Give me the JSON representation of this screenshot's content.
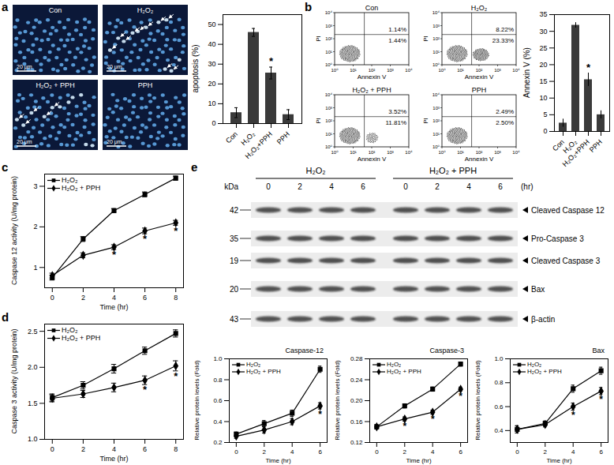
{
  "panel_labels": [
    "a",
    "b",
    "c",
    "d",
    "e"
  ],
  "micrographs": {
    "panel": "a",
    "titles": [
      "Con",
      "H₂O₂",
      "H₂O₂ + PPH",
      "PPH"
    ],
    "scale_bar": "20 μm"
  },
  "flow_cytometry": {
    "panel": "b",
    "x_label": "Annexin V",
    "y_label": "PI",
    "ticks": [
      "10⁰",
      "10¹",
      "10²",
      "10³",
      "10⁴"
    ],
    "plots": [
      {
        "title": "Con",
        "upper_right": "1.14%",
        "lower_right": "1.44%"
      },
      {
        "title": "H₂O₂",
        "upper_right": "8.22%",
        "lower_right": "23.33%"
      },
      {
        "title": "H₂O₂ + PPH",
        "upper_right": "3.52%",
        "lower_right": "11.81%"
      },
      {
        "title": "PPH",
        "upper_right": "2.49%",
        "lower_right": "2.50%"
      }
    ]
  },
  "western_blot": {
    "panel": "e",
    "groups": [
      "H₂O₂",
      "H₂O₂ + PPH"
    ],
    "times": [
      0,
      2,
      4,
      6
    ],
    "time_unit": "(hr)",
    "mw_unit": "kDa",
    "rows": [
      {
        "mw": 42,
        "label": "Cleaved Caspase 12"
      },
      {
        "mw": 35,
        "label": "Pro-Caspase 3"
      },
      {
        "mw": 19,
        "label": "Cleaved Caspase 3"
      },
      {
        "mw": 20,
        "label": "Bax"
      },
      {
        "mw": 43,
        "label": "β-actin"
      }
    ]
  },
  "chart_data": [
    {
      "panel": "a",
      "type": "bar",
      "categories": [
        "Con",
        "H₂O₂",
        "H₂O₂+PPH",
        "PPH"
      ],
      "values": [
        5.5,
        46,
        25.5,
        4.5
      ],
      "errors": [
        2.5,
        2,
        3,
        2.5
      ],
      "annotations": [
        null,
        null,
        "*",
        null
      ],
      "y_label": "apoptosis (%)",
      "ylim": [
        0,
        55
      ],
      "yticks": [
        0,
        10,
        20,
        30,
        40,
        50
      ],
      "color": "#3a3a3a"
    },
    {
      "panel": "b",
      "type": "bar",
      "categories": [
        "Con",
        "H₂O₂",
        "H₂O₂+PPH",
        "PPH"
      ],
      "values": [
        2.5,
        31.8,
        15.5,
        5
      ],
      "errors": [
        1.2,
        0.8,
        2,
        1.2
      ],
      "annotations": [
        null,
        null,
        "*",
        null
      ],
      "y_label": "Annexin V (%)",
      "ylim": [
        0,
        35
      ],
      "yticks": [
        0,
        5,
        10,
        15,
        20,
        25,
        30,
        35
      ],
      "color": "#3a3a3a"
    },
    {
      "panel": "c",
      "type": "line",
      "x": [
        0,
        2,
        4,
        6,
        8
      ],
      "x_label": "Time (hr)",
      "y_label": "Caspase 12 activity (U/mg protein)",
      "xlim": [
        -0.5,
        8.5
      ],
      "xticks": [
        0,
        2,
        4,
        6,
        8
      ],
      "ylim": [
        0.5,
        3.3
      ],
      "yticks": [
        1,
        2,
        3
      ],
      "legend": "top-left",
      "series": [
        {
          "name": "H₂O₂",
          "color": "#000000",
          "marker": "square",
          "values": [
            0.75,
            1.7,
            2.4,
            2.8,
            3.2
          ],
          "errors": [
            0.06,
            0.06,
            0.05,
            0.06,
            0.05
          ],
          "annotations": [
            null,
            null,
            null,
            null,
            null
          ]
        },
        {
          "name": "H₂O₂ + PPH",
          "color": "#000000",
          "marker": "diamond",
          "values": [
            0.8,
            1.3,
            1.5,
            1.9,
            2.1
          ],
          "errors": [
            0.06,
            0.06,
            0.06,
            0.07,
            0.06
          ],
          "annotations": [
            null,
            null,
            "*",
            "*",
            "*"
          ]
        }
      ]
    },
    {
      "panel": "d",
      "type": "line",
      "x": [
        0,
        2,
        4,
        6,
        8
      ],
      "x_label": "Time (hr)",
      "y_label": "Caspase 3 activity (U/mg protein)",
      "xlim": [
        -0.5,
        8.5
      ],
      "xticks": [
        0,
        2,
        4,
        6,
        8
      ],
      "ylim": [
        1.0,
        2.6
      ],
      "yticks": [
        {
          "value": 1,
          "label": "1.0"
        },
        1.5,
        {
          "value": 2,
          "label": "2.0"
        },
        2.5
      ],
      "legend": "top-left",
      "series": [
        {
          "name": "H₂O₂",
          "color": "#000000",
          "marker": "square",
          "values": [
            1.58,
            1.75,
            1.98,
            2.23,
            2.47
          ],
          "errors": [
            0.05,
            0.05,
            0.06,
            0.05,
            0.05
          ],
          "annotations": [
            null,
            null,
            null,
            null,
            null
          ]
        },
        {
          "name": "H₂O₂ + PPH",
          "color": "#000000",
          "marker": "diamond",
          "values": [
            1.57,
            1.63,
            1.72,
            1.82,
            2.02
          ],
          "errors": [
            0.05,
            0.05,
            0.06,
            0.06,
            0.07
          ],
          "annotations": [
            null,
            null,
            null,
            "*",
            "*"
          ]
        }
      ]
    },
    {
      "panel": "e",
      "type": "line",
      "title": "Caspase-12",
      "x": [
        0,
        2,
        4,
        6
      ],
      "x_label": "Time (hr)",
      "y_label": "Relative protein levels (Fold)",
      "xlim": [
        -0.5,
        6.5
      ],
      "xticks": [
        0,
        2,
        4,
        6
      ],
      "ylim": [
        0.2,
        1.0
      ],
      "yticks": [
        0.2,
        0.4,
        0.6,
        0.8,
        {
          "value": 1,
          "label": "1.0"
        }
      ],
      "legend": "top-left",
      "series": [
        {
          "name": "H₂O₂",
          "color": "#000000",
          "marker": "square",
          "values": [
            0.28,
            0.38,
            0.48,
            0.9
          ],
          "errors": [
            0.02,
            0.03,
            0.03,
            0.03
          ],
          "annotations": [
            null,
            null,
            null,
            null
          ]
        },
        {
          "name": "H₂O₂ + PPH",
          "color": "#000000",
          "marker": "diamond",
          "values": [
            0.26,
            0.32,
            0.4,
            0.55
          ],
          "errors": [
            0.02,
            0.03,
            0.03,
            0.03
          ],
          "annotations": [
            null,
            null,
            null,
            "*"
          ]
        }
      ]
    },
    {
      "panel": "e",
      "type": "line",
      "title": "Caspase-3",
      "x": [
        0,
        2,
        4,
        6
      ],
      "x_label": "Time (hr)",
      "y_label": "Relative protein levels (Fold)",
      "xlim": [
        -0.5,
        6.5
      ],
      "xticks": [
        0,
        2,
        4,
        6
      ],
      "ylim": [
        0.12,
        0.28
      ],
      "yticks": [
        0.12,
        0.16,
        {
          "value": 0.2,
          "label": "0.20"
        },
        0.24,
        0.28
      ],
      "legend": "top-left",
      "series": [
        {
          "name": "H₂O₂",
          "color": "#000000",
          "marker": "square",
          "values": [
            0.15,
            0.19,
            0.222,
            0.27
          ],
          "errors": [
            0.004,
            0.004,
            0.004,
            0.004
          ],
          "annotations": [
            null,
            null,
            null,
            null
          ]
        },
        {
          "name": "H₂O₂ + PPH",
          "color": "#000000",
          "marker": "diamond",
          "values": [
            0.15,
            0.165,
            0.178,
            0.222
          ],
          "errors": [
            0.004,
            0.004,
            0.004,
            0.004
          ],
          "annotations": [
            null,
            "*",
            "*",
            "*"
          ]
        }
      ]
    },
    {
      "panel": "e",
      "type": "line",
      "title": "Bax",
      "x": [
        0,
        2,
        4,
        6
      ],
      "x_label": "Time (hr)",
      "y_label": "Relative protein levels (Fold)",
      "xlim": [
        -0.5,
        6.5
      ],
      "xticks": [
        0,
        2,
        4,
        6
      ],
      "ylim": [
        0.3,
        1.0
      ],
      "yticks": [
        0.4,
        0.6,
        0.8,
        {
          "value": 1,
          "label": "1.0"
        }
      ],
      "legend": "top-left",
      "series": [
        {
          "name": "H₂O₂",
          "color": "#000000",
          "marker": "square",
          "values": [
            0.41,
            0.46,
            0.75,
            0.9
          ],
          "errors": [
            0.03,
            0.02,
            0.03,
            0.03
          ],
          "annotations": [
            null,
            null,
            null,
            null
          ]
        },
        {
          "name": "H₂O₂ + PPH",
          "color": "#000000",
          "marker": "diamond",
          "values": [
            0.41,
            0.45,
            0.6,
            0.73
          ],
          "errors": [
            0.03,
            0.02,
            0.03,
            0.03
          ],
          "annotations": [
            null,
            null,
            "*",
            "*"
          ]
        }
      ]
    }
  ]
}
